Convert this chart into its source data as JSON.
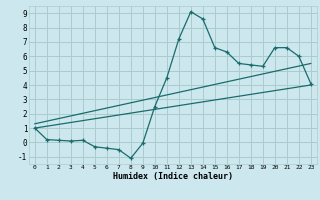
{
  "xlabel": "Humidex (Indice chaleur)",
  "bg_color": "#cce8ee",
  "grid_color": "#aacccc",
  "line_color": "#1a6b6b",
  "xlim": [
    -0.5,
    23.5
  ],
  "ylim": [
    -1.5,
    9.5
  ],
  "xticks": [
    0,
    1,
    2,
    3,
    4,
    5,
    6,
    7,
    8,
    9,
    10,
    11,
    12,
    13,
    14,
    15,
    16,
    17,
    18,
    19,
    20,
    21,
    22,
    23
  ],
  "yticks": [
    -1,
    0,
    1,
    2,
    3,
    4,
    5,
    6,
    7,
    8,
    9
  ],
  "curve1_x": [
    0,
    1,
    2,
    3,
    4,
    5,
    6,
    7,
    8,
    9,
    10,
    11,
    12,
    13,
    14,
    15,
    16,
    17,
    18,
    19,
    20,
    21,
    22,
    23
  ],
  "curve1_y": [
    1.0,
    0.2,
    0.15,
    0.1,
    0.15,
    -0.3,
    -0.4,
    -0.5,
    -1.1,
    -0.05,
    2.5,
    4.5,
    7.2,
    9.1,
    8.6,
    6.6,
    6.3,
    5.5,
    5.4,
    5.3,
    6.6,
    6.6,
    6.0,
    4.1
  ],
  "line1_x": [
    0,
    23
  ],
  "line1_y": [
    1.0,
    4.0
  ],
  "line2_x": [
    0,
    23
  ],
  "line2_y": [
    1.3,
    5.5
  ],
  "line3_x": [
    0,
    23
  ],
  "line3_y": [
    1.0,
    3.5
  ]
}
